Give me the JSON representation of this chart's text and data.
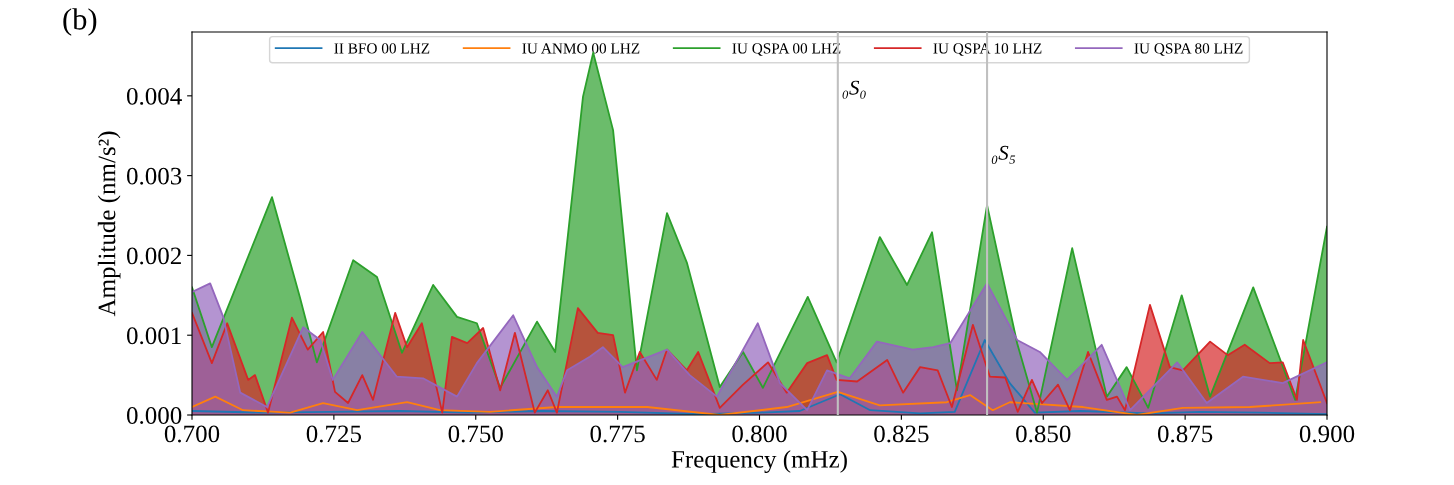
{
  "chart_data": {
    "type": "area",
    "xlabel": "Frequency (mHz)",
    "ylabel": "Amplitude (nm/s²)",
    "annotations": [
      "(b)"
    ],
    "xlim": [
      0.7,
      0.9
    ],
    "xticks": [
      {
        "value": 0.7,
        "label": "0.700"
      },
      {
        "value": 0.725,
        "label": "0.725"
      },
      {
        "value": 0.75,
        "label": "0.750"
      },
      {
        "value": 0.775,
        "label": "0.775"
      },
      {
        "value": 0.8,
        "label": "0.800"
      },
      {
        "value": 0.825,
        "label": "0.825"
      },
      {
        "value": 0.85,
        "label": "0.850"
      },
      {
        "value": 0.875,
        "label": "0.875"
      },
      {
        "value": 0.9,
        "label": "0.900"
      }
    ],
    "ylim": [
      0,
      0.0048
    ],
    "yticks": [
      {
        "value": 0,
        "label": "0.000"
      },
      {
        "value": 0.001,
        "label": "0.001"
      },
      {
        "value": 0.002,
        "label": "0.002"
      },
      {
        "value": 0.003,
        "label": "0.003"
      },
      {
        "value": 0.004,
        "label": "0.004"
      }
    ],
    "grid": false,
    "legend": "top",
    "line_style": "solid",
    "marker": "none",
    "ref_lines": [
      {
        "axis": "x",
        "value": 0.8138,
        "label": "₀S₀",
        "color": "#c0c0c0"
      },
      {
        "axis": "x",
        "value": 0.8401,
        "label": "₀S₅",
        "color": "#c0c0c0"
      }
    ],
    "series": [
      {
        "name": "II BFO 00 LHZ",
        "color": "#1f77b4",
        "x": [
          0.7,
          0.712,
          0.7243,
          0.7366,
          0.749,
          0.7613,
          0.7754,
          0.7895,
          0.8001,
          0.8071,
          0.8142,
          0.8195,
          0.8283,
          0.8344,
          0.8397,
          0.8441,
          0.8485,
          0.8565,
          0.8688,
          0.8776,
          0.8882,
          0.9
        ],
        "values": [
          5e-05,
          3e-05,
          4e-05,
          5e-05,
          3e-05,
          5e-05,
          4e-05,
          1e-05,
          3e-05,
          5e-05,
          0.00026,
          6e-05,
          2e-05,
          4e-05,
          0.00094,
          0.0004,
          3e-05,
          5e-05,
          2e-05,
          4e-05,
          3e-05,
          1e-05
        ]
      },
      {
        "name": "IU ANMO 00 LHZ",
        "color": "#ff7f0e",
        "x": [
          0.7,
          0.7041,
          0.709,
          0.7173,
          0.7231,
          0.7291,
          0.7379,
          0.7437,
          0.7525,
          0.7643,
          0.7802,
          0.793,
          0.8048,
          0.8138,
          0.8212,
          0.833,
          0.8371,
          0.8411,
          0.8441,
          0.857,
          0.8665,
          0.8746,
          0.8864,
          0.8988
        ],
        "values": [
          0.0001,
          0.00023,
          6e-05,
          3e-05,
          0.00015,
          6e-05,
          0.00016,
          6e-05,
          4e-05,
          0.0001,
          0.0001,
          0,
          0.0001,
          0.00029,
          0.00012,
          0.00016,
          0.00025,
          6e-05,
          0.00016,
          0.0001,
          0,
          9e-05,
          0.0001,
          0.00016
        ]
      },
      {
        "name": "IU QSPA 00 LHZ",
        "color": "#2ca02c",
        "x": [
          0.7,
          0.7035,
          0.7141,
          0.719,
          0.722,
          0.7284,
          0.7326,
          0.737,
          0.7425,
          0.7467,
          0.7502,
          0.7543,
          0.7608,
          0.764,
          0.7689,
          0.7707,
          0.7742,
          0.7784,
          0.7837,
          0.7872,
          0.793,
          0.7971,
          0.8006,
          0.8085,
          0.8136,
          0.8212,
          0.826,
          0.8304,
          0.8348,
          0.8401,
          0.8454,
          0.8489,
          0.8551,
          0.8612,
          0.8647,
          0.8685,
          0.8744,
          0.8794,
          0.887,
          0.8944,
          0.9
        ],
        "values": [
          0.0016,
          0.00085,
          0.00273,
          0.00148,
          0.00066,
          0.00194,
          0.00173,
          0.00078,
          0.00163,
          0.00123,
          0.00115,
          0.00034,
          0.00117,
          0.00079,
          0.00399,
          0.00454,
          0.00357,
          0.00056,
          0.00253,
          0.00191,
          0.00035,
          0.00079,
          0.00034,
          0.00148,
          0.00066,
          0.00223,
          0.00163,
          0.00229,
          0.00031,
          0.00263,
          0.0009,
          3e-05,
          0.00209,
          0.00023,
          0.0006,
          9e-05,
          0.0015,
          0.00023,
          0.0016,
          0.00019,
          0.00236
        ]
      },
      {
        "name": "IU QSPA 10 LHZ",
        "color": "#d62728",
        "x": [
          0.7,
          0.7035,
          0.7062,
          0.7099,
          0.7111,
          0.7134,
          0.7176,
          0.7204,
          0.7231,
          0.7252,
          0.7275,
          0.73,
          0.7319,
          0.7358,
          0.7379,
          0.7405,
          0.7441,
          0.7458,
          0.7485,
          0.7513,
          0.7543,
          0.7569,
          0.7604,
          0.7627,
          0.7643,
          0.768,
          0.7715,
          0.7742,
          0.7763,
          0.7789,
          0.7819,
          0.7837,
          0.7872,
          0.7892,
          0.793,
          0.7971,
          0.8015,
          0.8048,
          0.8084,
          0.8119,
          0.8136,
          0.8172,
          0.8225,
          0.8253,
          0.8283,
          0.8314,
          0.8339,
          0.8376,
          0.8406,
          0.8433,
          0.8455,
          0.848,
          0.8498,
          0.8526,
          0.8547,
          0.8579,
          0.8612,
          0.863,
          0.8644,
          0.8688,
          0.8723,
          0.8746,
          0.8794,
          0.8825,
          0.8855,
          0.8899,
          0.8922,
          0.8947,
          0.8958,
          0.9
        ],
        "values": [
          0.00128,
          0.00065,
          0.00115,
          0.00044,
          0.0005,
          3e-05,
          0.00122,
          0.00082,
          0.00104,
          0.00029,
          0.00015,
          0.0005,
          0.00019,
          0.00128,
          0.00085,
          0.00115,
          3e-05,
          0.00098,
          0.0009,
          0.00109,
          0.00031,
          0.00103,
          3e-05,
          0.00031,
          3e-05,
          0.00134,
          0.00103,
          0.001,
          0.00028,
          0.00079,
          0.00044,
          0.00082,
          0.00056,
          0.00079,
          9e-05,
          0.00038,
          0.00066,
          0.00028,
          0.00065,
          0.00075,
          0.00044,
          0.00042,
          0.00069,
          0.00028,
          0.0006,
          0.00056,
          0.0001,
          0.00113,
          0.00048,
          0.00047,
          4e-05,
          0.00044,
          0.00015,
          0.00038,
          6e-05,
          0.00079,
          0.00019,
          0.00023,
          6e-05,
          0.00138,
          0.0006,
          0.00056,
          0.00092,
          0.00075,
          0.00088,
          0.00065,
          0.00066,
          0.00019,
          0.00094,
          0.00015
        ]
      },
      {
        "name": "IU QSPA 80 LHZ",
        "color": "#9467bd",
        "x": [
          0.7,
          0.7032,
          0.7055,
          0.7085,
          0.7132,
          0.7196,
          0.7226,
          0.7248,
          0.73,
          0.7361,
          0.7407,
          0.7467,
          0.7502,
          0.7566,
          0.7608,
          0.7643,
          0.7661,
          0.7701,
          0.7724,
          0.7759,
          0.7837,
          0.7877,
          0.7925,
          0.7997,
          0.8036,
          0.8084,
          0.8119,
          0.8159,
          0.8207,
          0.827,
          0.8306,
          0.8336,
          0.8401,
          0.8454,
          0.8494,
          0.8542,
          0.8603,
          0.8653,
          0.8736,
          0.8788,
          0.8852,
          0.8922,
          0.9
        ],
        "values": [
          0.00154,
          0.00165,
          0.00123,
          0.00028,
          0.0001,
          0.0011,
          0.00094,
          0.00044,
          0.00104,
          0.00048,
          0.00046,
          0.00023,
          0.00065,
          0.00125,
          0.0006,
          0.00023,
          0.00056,
          0.00073,
          0.00085,
          0.0006,
          0.00082,
          0.0005,
          0.00023,
          0.00115,
          0.0004,
          6e-05,
          0.00056,
          0.00046,
          0.00092,
          0.00082,
          0.00085,
          0.0009,
          0.00165,
          0.00094,
          0.00079,
          0.00044,
          0.00088,
          6e-05,
          0.00066,
          0.00015,
          0.00048,
          0.0004,
          0.00066
        ]
      }
    ]
  }
}
